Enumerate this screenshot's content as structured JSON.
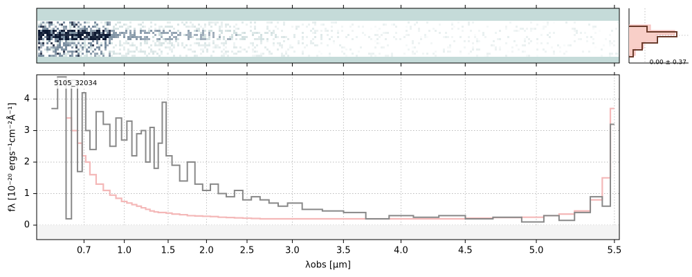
{
  "chart_data": {
    "type": "step",
    "annotation": "5105_32034",
    "xlabel": "λobs [μm]",
    "ylabel": "fλ [10⁻²⁰ ergs⁻¹cm⁻²Å⁻¹]",
    "hist_label": "0.00 ± 0.37",
    "x": [
      0.55,
      0.6,
      0.62,
      0.65,
      0.68,
      0.7,
      0.72,
      0.75,
      0.8,
      0.85,
      0.9,
      0.95,
      1.0,
      1.05,
      1.1,
      1.15,
      1.2,
      1.25,
      1.3,
      1.35,
      1.4,
      1.45,
      1.5,
      1.6,
      1.7,
      1.8,
      1.9,
      2.0,
      2.1,
      2.2,
      2.3,
      2.4,
      2.5,
      2.6,
      2.7,
      2.8,
      2.9,
      3.0,
      3.2,
      3.4,
      3.6,
      3.8,
      4.0,
      4.2,
      4.4,
      4.6,
      4.8,
      5.0,
      5.1,
      5.2,
      5.3,
      5.4,
      5.45,
      5.5
    ],
    "series": [
      {
        "color": "#888888",
        "values": [
          3.7,
          4.7,
          0.2,
          4.6,
          1.7,
          4.2,
          3.0,
          2.4,
          3.6,
          3.2,
          2.5,
          3.4,
          2.7,
          3.3,
          2.2,
          2.9,
          3.0,
          2.0,
          3.1,
          1.8,
          2.6,
          3.9,
          2.2,
          1.9,
          1.4,
          2.0,
          1.3,
          1.1,
          1.3,
          1.0,
          0.9,
          1.1,
          0.8,
          0.9,
          0.8,
          0.7,
          0.6,
          0.7,
          0.5,
          0.45,
          0.4,
          0.2,
          0.3,
          0.25,
          0.3,
          0.2,
          0.25,
          0.1,
          0.3,
          0.15,
          0.4,
          0.9,
          0.6,
          3.2
        ]
      },
      {
        "color": "#f4b8b8",
        "values": [
          null,
          null,
          3.4,
          3.0,
          2.6,
          2.2,
          2.0,
          1.6,
          1.3,
          1.1,
          0.95,
          0.85,
          0.75,
          0.7,
          0.65,
          0.6,
          0.55,
          0.5,
          0.45,
          0.42,
          0.4,
          0.4,
          0.38,
          0.35,
          0.33,
          0.3,
          0.29,
          0.28,
          0.27,
          0.25,
          0.24,
          0.23,
          0.22,
          0.21,
          0.2,
          0.2,
          0.2,
          0.2,
          0.2,
          0.2,
          0.2,
          0.2,
          0.2,
          0.2,
          0.2,
          0.22,
          0.24,
          0.25,
          0.3,
          0.35,
          0.45,
          0.8,
          1.5,
          3.7
        ]
      }
    ],
    "xlim": [
      0.5,
      5.53
    ],
    "ylim": [
      -0.46,
      4.77
    ],
    "xticks": [
      0.7,
      {
        "value": 1.0,
        "label": "1.0"
      },
      1.5,
      {
        "value": 2.0,
        "label": "2.0"
      },
      2.5,
      {
        "value": 3.0,
        "label": "3.0"
      },
      3.5,
      {
        "value": 4.0,
        "label": "4.0"
      },
      4.5,
      {
        "value": 5.0,
        "label": "5.0"
      },
      5.5
    ],
    "yticks": [
      0,
      1,
      2,
      3,
      4
    ],
    "grid": true
  }
}
